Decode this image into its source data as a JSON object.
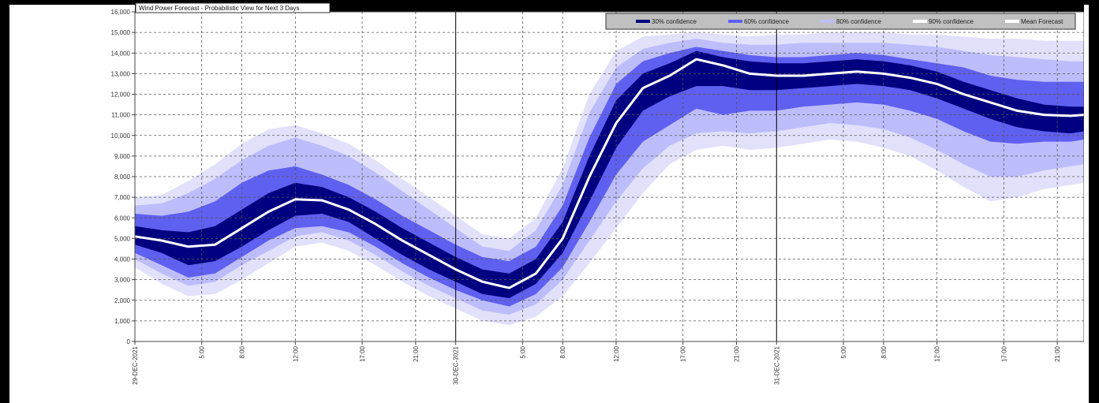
{
  "chart_data": {
    "type": "area",
    "title": "Wind Power Forecast - Probabilistic View for Next 3 Days",
    "xlabel": "",
    "ylabel": "",
    "ylim": [
      0,
      16000
    ],
    "yticks": [
      0,
      1000,
      2000,
      3000,
      4000,
      5000,
      6000,
      7000,
      8000,
      9000,
      10000,
      11000,
      12000,
      13000,
      14000,
      15000,
      16000
    ],
    "ytick_labels": [
      "0",
      "1,000",
      "2,000",
      "3,000",
      "4,000",
      "5,000",
      "6,000",
      "7,000",
      "8,000",
      "9,000",
      "10,000",
      "11,000",
      "12,000",
      "13,000",
      "14,000",
      "15,000",
      "16,000"
    ],
    "xlim": [
      0,
      71
    ],
    "xticks": [
      {
        "x": 0,
        "label": "29-DEC-2021",
        "major": true
      },
      {
        "x": 5,
        "label": "5:00",
        "major": false
      },
      {
        "x": 8,
        "label": "8:00",
        "major": false
      },
      {
        "x": 12,
        "label": "12:00",
        "major": false
      },
      {
        "x": 17,
        "label": "17:00",
        "major": false
      },
      {
        "x": 21,
        "label": "21:00",
        "major": false
      },
      {
        "x": 24,
        "label": "30-DEC-2021",
        "major": true
      },
      {
        "x": 29,
        "label": "5:00",
        "major": false
      },
      {
        "x": 32,
        "label": "8:00",
        "major": false
      },
      {
        "x": 36,
        "label": "12:00",
        "major": false
      },
      {
        "x": 41,
        "label": "17:00",
        "major": false
      },
      {
        "x": 45,
        "label": "21:00",
        "major": false
      },
      {
        "x": 48,
        "label": "31-DEC-2021",
        "major": true
      },
      {
        "x": 53,
        "label": "5:00",
        "major": false
      },
      {
        "x": 56,
        "label": "8:00",
        "major": false
      },
      {
        "x": 60,
        "label": "12:00",
        "major": false
      },
      {
        "x": 65,
        "label": "17:00",
        "major": false
      },
      {
        "x": 69,
        "label": "21:00",
        "major": false
      }
    ],
    "x": [
      0,
      2,
      4,
      6,
      8,
      10,
      12,
      14,
      16,
      18,
      20,
      22,
      24,
      26,
      28,
      30,
      32,
      34,
      36,
      38,
      40,
      42,
      44,
      46,
      48,
      50,
      52,
      54,
      56,
      58,
      60,
      62,
      64,
      66,
      68,
      70,
      71
    ],
    "mean": [
      5100,
      4900,
      4600,
      4700,
      5500,
      6300,
      6900,
      6850,
      6400,
      5700,
      4900,
      4200,
      3500,
      2900,
      2600,
      3300,
      5000,
      8000,
      10600,
      12300,
      12900,
      13700,
      13400,
      13000,
      12900,
      12900,
      13000,
      13100,
      13000,
      12800,
      12500,
      12000,
      11600,
      11200,
      11000,
      10950,
      11000
    ],
    "bands": [
      {
        "name": "90% confidence",
        "color": "#e1e1fc",
        "lower": [
          3600,
          2800,
          2200,
          2300,
          3000,
          3800,
          4600,
          4800,
          4400,
          3700,
          2900,
          2200,
          1600,
          1000,
          800,
          1200,
          2200,
          3800,
          5500,
          7200,
          8600,
          9300,
          9500,
          9300,
          9400,
          9600,
          9800,
          9700,
          9400,
          9000,
          8300,
          7500,
          6800,
          7000,
          7400,
          7600,
          7700
        ],
        "upper": [
          7000,
          7100,
          7800,
          8600,
          9600,
          10300,
          10500,
          10100,
          9600,
          8800,
          7900,
          7000,
          6100,
          5200,
          5000,
          6000,
          8400,
          12000,
          14100,
          14800,
          14900,
          15000,
          14900,
          14800,
          14900,
          14900,
          15000,
          15000,
          15000,
          14900,
          14900,
          14800,
          14700,
          14700,
          14600,
          14600,
          14600
        ]
      },
      {
        "name": "80% confidence",
        "color": "#bdbdfb",
        "lower": [
          4000,
          3300,
          2700,
          2900,
          3700,
          4400,
          5100,
          5300,
          4900,
          4200,
          3400,
          2700,
          2100,
          1500,
          1300,
          1800,
          3000,
          4900,
          6800,
          8400,
          9500,
          10100,
          10200,
          10100,
          10200,
          10400,
          10600,
          10500,
          10300,
          9900,
          9300,
          8600,
          8000,
          8000,
          8300,
          8500,
          8600
        ],
        "upper": [
          6600,
          6700,
          7200,
          7900,
          8800,
          9500,
          9900,
          9500,
          9000,
          8200,
          7300,
          6400,
          5500,
          4600,
          4400,
          5400,
          7600,
          11100,
          13300,
          14200,
          14500,
          14700,
          14500,
          14400,
          14400,
          14500,
          14500,
          14500,
          14500,
          14400,
          14300,
          14100,
          13900,
          13800,
          13700,
          13600,
          13600
        ]
      },
      {
        "name": "60% confidence",
        "color": "#6060f0",
        "lower": [
          4300,
          3700,
          3100,
          3300,
          4100,
          4900,
          5500,
          5600,
          5300,
          4600,
          3800,
          3100,
          2500,
          2000,
          1700,
          2300,
          3600,
          5800,
          8100,
          9700,
          10500,
          11300,
          11000,
          11200,
          11200,
          11400,
          11500,
          11600,
          11500,
          11200,
          10800,
          10200,
          9700,
          9600,
          9700,
          9700,
          9800
        ],
        "upper": [
          6200,
          6100,
          6300,
          6800,
          7700,
          8300,
          8500,
          8100,
          7600,
          6900,
          6100,
          5400,
          4700,
          4100,
          3900,
          4600,
          6600,
          9900,
          12500,
          13600,
          14000,
          14300,
          14100,
          13900,
          13800,
          13800,
          13900,
          14000,
          13900,
          13700,
          13500,
          13300,
          12900,
          12700,
          12600,
          12600,
          12600
        ]
      },
      {
        "name": "30% confidence",
        "color": "#000080",
        "lower": [
          4700,
          4300,
          3700,
          3900,
          4600,
          5400,
          6100,
          6200,
          5800,
          5000,
          4200,
          3500,
          2900,
          2300,
          2100,
          2800,
          4300,
          6800,
          9400,
          11200,
          11900,
          12400,
          12400,
          12200,
          12200,
          12300,
          12400,
          12500,
          12400,
          12200,
          11800,
          11300,
          10800,
          10400,
          10200,
          10100,
          10200
        ],
        "upper": [
          5600,
          5400,
          5300,
          5600,
          6400,
          7200,
          7700,
          7500,
          7000,
          6300,
          5500,
          4800,
          4100,
          3500,
          3300,
          4000,
          5800,
          9000,
          11700,
          13000,
          13500,
          14100,
          13800,
          13600,
          13500,
          13500,
          13600,
          13700,
          13600,
          13400,
          13100,
          12600,
          12200,
          11800,
          11500,
          11400,
          11400
        ]
      }
    ],
    "legend": {
      "placement": "top-right",
      "entries": [
        {
          "label": "30% confidence",
          "color": "#000080"
        },
        {
          "label": "60% confidence",
          "color": "#6060f0"
        },
        {
          "label": "80% confidence",
          "color": "#bdbdfb"
        },
        {
          "label": "90% confidence",
          "color": "#ffffff"
        },
        {
          "label": "Mean Forecast",
          "color": "#ffffff"
        }
      ]
    },
    "grid": true
  }
}
